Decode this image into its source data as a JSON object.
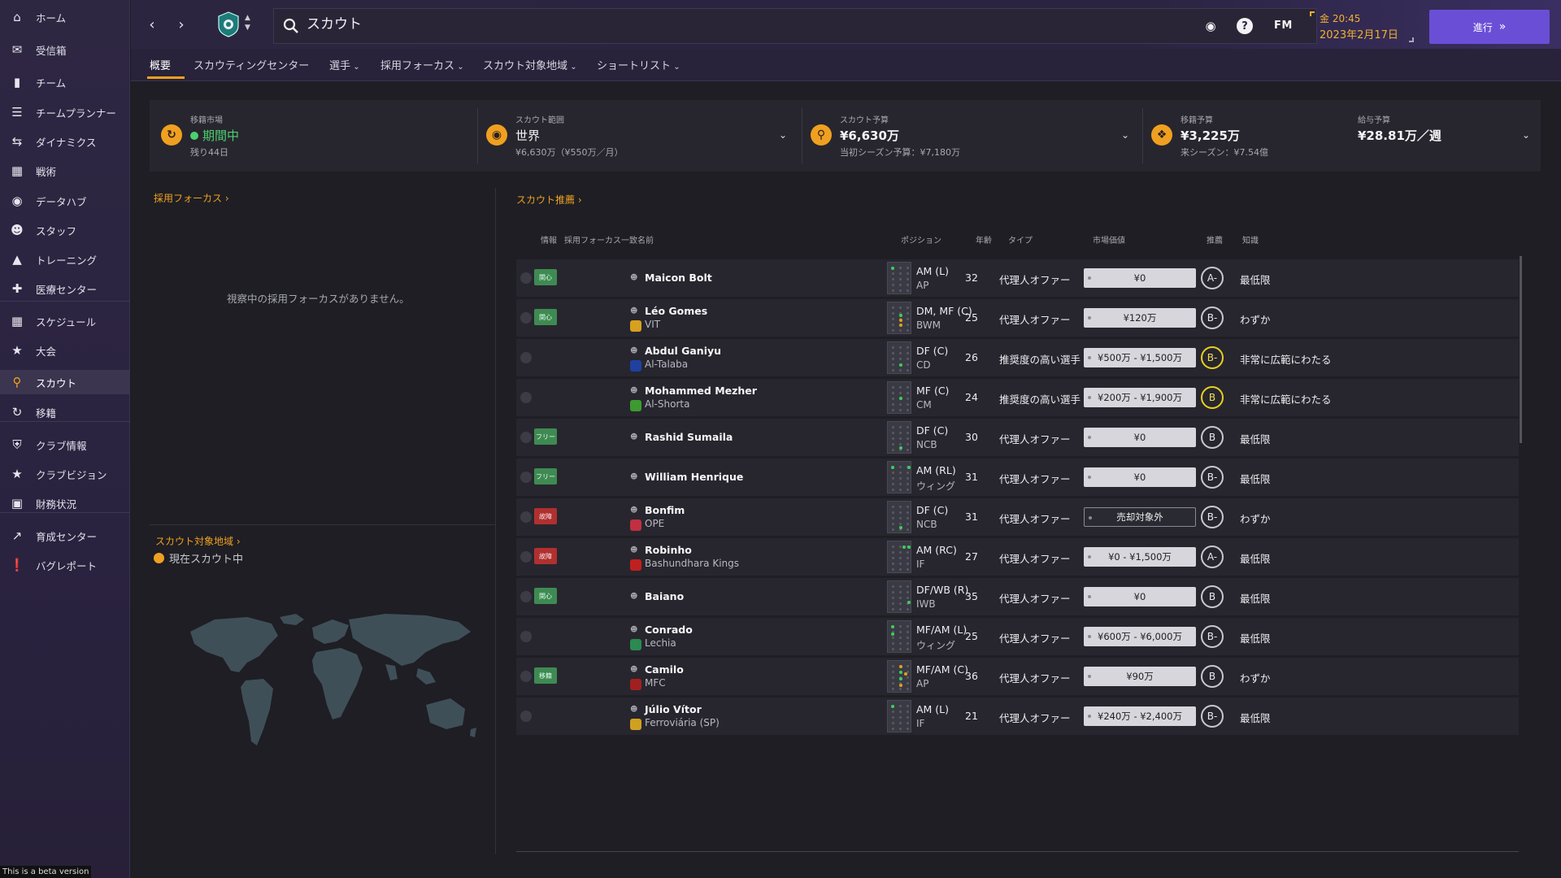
{
  "sidebar": {
    "items": [
      {
        "label": "ホーム",
        "icon": "home-icon"
      },
      {
        "label": "受信箱",
        "icon": "inbox-icon"
      },
      {
        "label": "チーム",
        "icon": "shirt-icon"
      },
      {
        "label": "チームプランナー",
        "icon": "planner-icon"
      },
      {
        "label": "ダイナミクス",
        "icon": "dynamics-icon"
      },
      {
        "label": "戦術",
        "icon": "tactics-icon"
      },
      {
        "label": "データハブ",
        "icon": "datahub-icon"
      },
      {
        "label": "スタッフ",
        "icon": "staff-icon"
      },
      {
        "label": "トレーニング",
        "icon": "training-icon"
      },
      {
        "label": "医療センター",
        "icon": "medical-icon"
      },
      {
        "label": "スケジュール",
        "icon": "calendar-icon"
      },
      {
        "label": "大会",
        "icon": "trophy-icon"
      },
      {
        "label": "スカウト",
        "icon": "scout-icon"
      },
      {
        "label": "移籍",
        "icon": "transfer-icon"
      },
      {
        "label": "クラブ情報",
        "icon": "shield-icon"
      },
      {
        "label": "クラブビジョン",
        "icon": "vision-icon"
      },
      {
        "label": "財務状況",
        "icon": "finance-icon"
      },
      {
        "label": "育成センター",
        "icon": "development-icon"
      },
      {
        "label": "バグレポート",
        "icon": "bug-report-icon"
      }
    ],
    "active_index": 12,
    "beta_note": "This is a beta version"
  },
  "header": {
    "search_text": "スカウト",
    "fm_logo": "FM",
    "time": "金 20:45",
    "date": "2023年2月17日",
    "continue_label": "進行"
  },
  "tabs": [
    {
      "label": "概要",
      "dropdown": false
    },
    {
      "label": "スカウティングセンター",
      "dropdown": false
    },
    {
      "label": "選手",
      "dropdown": true
    },
    {
      "label": "採用フォーカス",
      "dropdown": true
    },
    {
      "label": "スカウト対象地域",
      "dropdown": true
    },
    {
      "label": "ショートリスト",
      "dropdown": true
    }
  ],
  "summary": {
    "transfer_window": {
      "label": "移籍市場",
      "value": "期間中",
      "sub": "残り44日"
    },
    "scout_range": {
      "label": "スカウト範囲",
      "value": "世界",
      "sub": "¥6,630万（¥550万／月）"
    },
    "scout_budget": {
      "label": "スカウト予算",
      "value": "¥6,630万",
      "sub": "当初シーズン予算：¥7,180万"
    },
    "transfer_budget": {
      "label": "移籍予算",
      "value": "¥3,225万",
      "sub": "来シーズン：¥7.54億"
    },
    "wage_budget": {
      "label": "給与予算",
      "value": "¥28.81万／週"
    }
  },
  "left": {
    "recruitment_focus_link": "採用フォーカス",
    "empty_message": "視察中の採用フォーカスがありません。",
    "scout_regions_link": "スカウト対象地域",
    "current_scouting": "現在スカウト中"
  },
  "right": {
    "recommend_link": "スカウト推薦",
    "columns": {
      "info": "情報",
      "focus_match": "採用フォーカス一致",
      "name": "名前",
      "position": "ポジション",
      "age": "年齢",
      "type": "タイプ",
      "value": "市場価値",
      "rec": "推薦",
      "knowledge": "知識"
    },
    "players": [
      {
        "badge": "関心",
        "badge_color": "green",
        "name": "Maicon Bolt",
        "club": "",
        "pos": "AM (L)",
        "role": "AP",
        "age": "32",
        "type": "代理人オファー",
        "value": "¥0",
        "rec": "A-",
        "rec_color": "white",
        "knowledge": "最低限"
      },
      {
        "badge": "関心",
        "badge_color": "green",
        "name": "Léo Gomes",
        "club": "VIT",
        "pos": "DM, MF (C)",
        "role": "BWM",
        "age": "25",
        "type": "代理人オファー",
        "value": "¥120万",
        "rec": "B-",
        "rec_color": "white",
        "knowledge": "わずか"
      },
      {
        "badge": "",
        "badge_color": "",
        "name": "Abdul Ganiyu",
        "club": "Al-Talaba",
        "pos": "DF (C)",
        "role": "CD",
        "age": "26",
        "type": "推奨度の高い選手",
        "value": "¥500万 - ¥1,500万",
        "rec": "B-",
        "rec_color": "yellow",
        "knowledge": "非常に広範にわたる"
      },
      {
        "badge": "",
        "badge_color": "",
        "name": "Mohammed Mezher",
        "club": "Al-Shorta",
        "pos": "MF (C)",
        "role": "CM",
        "age": "24",
        "type": "推奨度の高い選手",
        "value": "¥200万 - ¥1,900万",
        "rec": "B",
        "rec_color": "yellow",
        "knowledge": "非常に広範にわたる"
      },
      {
        "badge": "フリー",
        "badge_color": "green",
        "name": "Rashid Sumaila",
        "club": "",
        "pos": "DF (C)",
        "role": "NCB",
        "age": "30",
        "type": "代理人オファー",
        "value": "¥0",
        "rec": "B",
        "rec_color": "white",
        "knowledge": "最低限"
      },
      {
        "badge": "フリー",
        "badge_color": "green",
        "name": "William Henrique",
        "club": "",
        "pos": "AM (RL)",
        "role": "ウィング",
        "age": "31",
        "type": "代理人オファー",
        "value": "¥0",
        "rec": "B-",
        "rec_color": "white",
        "knowledge": "最低限"
      },
      {
        "badge": "故障",
        "badge_color": "red",
        "name": "Bonfim",
        "club": "OPE",
        "pos": "DF (C)",
        "role": "NCB",
        "age": "31",
        "type": "代理人オファー",
        "value": "売却対象外",
        "value_style": "dark",
        "rec": "B-",
        "rec_color": "white",
        "knowledge": "わずか"
      },
      {
        "badge": "故障",
        "badge_color": "red",
        "name": "Robinho",
        "club": "Bashundhara Kings",
        "pos": "AM (RC)",
        "role": "IF",
        "age": "27",
        "type": "代理人オファー",
        "value": "¥0 - ¥1,500万",
        "rec": "A-",
        "rec_color": "white",
        "knowledge": "最低限"
      },
      {
        "badge": "関心",
        "badge_color": "green",
        "name": "Baiano",
        "club": "",
        "pos": "DF/WB (R)",
        "role": "IWB",
        "age": "35",
        "type": "代理人オファー",
        "value": "¥0",
        "rec": "B",
        "rec_color": "white",
        "knowledge": "最低限"
      },
      {
        "badge": "",
        "badge_color": "",
        "name": "Conrado",
        "club": "Lechia",
        "pos": "MF/AM (L)",
        "role": "ウィング",
        "age": "25",
        "type": "代理人オファー",
        "value": "¥600万 - ¥6,000万",
        "rec": "B-",
        "rec_color": "white",
        "knowledge": "最低限"
      },
      {
        "badge": "移籍",
        "badge_color": "green",
        "name": "Camilo",
        "club": "MFC",
        "pos": "MF/AM (C)",
        "role": "AP",
        "age": "36",
        "type": "代理人オファー",
        "value": "¥90万",
        "rec": "B",
        "rec_color": "white",
        "knowledge": "わずか"
      },
      {
        "badge": "",
        "badge_color": "",
        "name": "Júlio Vítor",
        "club": "Ferroviária (SP)",
        "pos": "AM (L)",
        "role": "IF",
        "age": "21",
        "type": "代理人オファー",
        "value": "¥240万 - ¥2,400万",
        "rec": "B-",
        "rec_color": "white",
        "knowledge": "最低限"
      }
    ]
  }
}
